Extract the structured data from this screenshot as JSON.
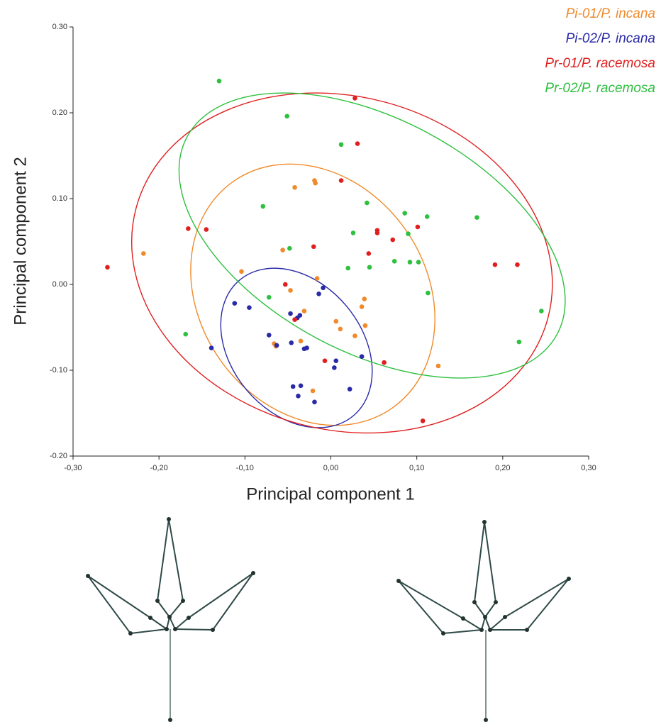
{
  "chart_data": {
    "type": "scatter",
    "x_label": "Principal component 1",
    "y_label": "Principal component 2",
    "xlim": [
      -0.3,
      0.3
    ],
    "ylim": [
      -0.2,
      0.3
    ],
    "xticks": [
      {
        "value": -0.3,
        "label": "-0,30"
      },
      {
        "value": -0.2,
        "label": "-0,20"
      },
      {
        "value": -0.1,
        "label": "-0,10"
      },
      {
        "value": 0,
        "label": "0,00"
      },
      {
        "value": 0.1,
        "label": "0,10"
      },
      {
        "value": 0.2,
        "label": "0,20"
      },
      {
        "value": 0.3,
        "label": "0,30"
      }
    ],
    "yticks": [
      {
        "value": -0.2,
        "label": "-0.20"
      },
      {
        "value": -0.1,
        "label": "-0.10"
      },
      {
        "value": 0,
        "label": "0.00"
      },
      {
        "value": 0.1,
        "label": "0.10"
      },
      {
        "value": 0.2,
        "label": "0.20"
      },
      {
        "value": 0.3,
        "label": "0.30"
      }
    ],
    "series": [
      {
        "name": "Pi-01/P. incana",
        "color": "#f08a2a",
        "x": [
          -0.218,
          -0.104,
          -0.056,
          -0.042,
          -0.019,
          -0.018,
          -0.047,
          -0.016,
          -0.031,
          -0.035,
          -0.064,
          0.006,
          0.011,
          0.028,
          0.039,
          0.036,
          0.04,
          -0.021,
          0.125,
          -0.066
        ],
        "values": [
          0.036,
          0.015,
          0.04,
          0.113,
          0.121,
          0.118,
          -0.007,
          0.007,
          -0.031,
          -0.066,
          -0.072,
          -0.043,
          -0.052,
          -0.06,
          -0.017,
          -0.026,
          -0.048,
          -0.124,
          -0.095,
          -0.069
        ],
        "ellipse": {
          "center": [
            -0.021,
            -0.012
          ],
          "semi_axes": [
            0.161,
            0.132
          ],
          "angle": -55
        }
      },
      {
        "name": "Pi-02/P. incana",
        "color": "#2a2aa8",
        "x": [
          -0.112,
          -0.095,
          -0.139,
          -0.072,
          -0.063,
          -0.046,
          -0.047,
          -0.036,
          -0.039,
          -0.031,
          -0.028,
          -0.009,
          -0.044,
          -0.035,
          -0.038,
          -0.019,
          0.004,
          0.006,
          0.022,
          0.036,
          -0.014
        ],
        "values": [
          -0.022,
          -0.027,
          -0.074,
          -0.059,
          -0.071,
          -0.068,
          -0.034,
          -0.036,
          -0.039,
          -0.075,
          -0.074,
          -0.004,
          -0.119,
          -0.118,
          -0.13,
          -0.137,
          -0.097,
          -0.089,
          -0.122,
          -0.084,
          -0.011
        ],
        "ellipse": {
          "center": [
            -0.04,
            -0.074
          ],
          "semi_axes": [
            0.103,
            0.076
          ],
          "angle": -50
        }
      },
      {
        "name": "Pr-01/P. racemosa",
        "color": "#e02020",
        "x": [
          -0.26,
          -0.166,
          -0.145,
          -0.053,
          -0.042,
          -0.02,
          -0.007,
          0.028,
          0.031,
          0.012,
          0.044,
          0.054,
          0.054,
          0.072,
          0.101,
          0.062,
          0.107,
          0.191,
          0.217
        ],
        "values": [
          0.02,
          0.065,
          0.064,
          0.0,
          -0.041,
          0.044,
          -0.089,
          0.217,
          0.164,
          0.121,
          0.036,
          0.063,
          0.06,
          0.052,
          0.067,
          -0.091,
          -0.159,
          0.023,
          0.023
        ],
        "ellipse": {
          "center": [
            0.013,
            0.025
          ],
          "semi_axes": [
            0.248,
            0.194
          ],
          "angle": -15
        }
      },
      {
        "name": "Pr-02/P. racemosa",
        "color": "#2ec040",
        "x": [
          -0.13,
          -0.051,
          -0.079,
          -0.048,
          0.012,
          0.042,
          0.026,
          0.02,
          0.045,
          0.074,
          0.086,
          0.09,
          0.092,
          0.102,
          0.112,
          0.113,
          0.17,
          0.219,
          0.245,
          -0.169,
          -0.072
        ],
        "values": [
          0.237,
          0.196,
          0.091,
          0.042,
          0.163,
          0.095,
          0.06,
          0.019,
          0.02,
          0.027,
          0.083,
          0.059,
          0.026,
          0.026,
          0.079,
          -0.01,
          0.078,
          -0.067,
          -0.031,
          -0.058,
          -0.015
        ],
        "ellipse": {
          "center": [
            0.048,
            0.057
          ],
          "semi_axes": [
            0.244,
            0.136
          ],
          "angle": -28
        }
      }
    ]
  }
}
